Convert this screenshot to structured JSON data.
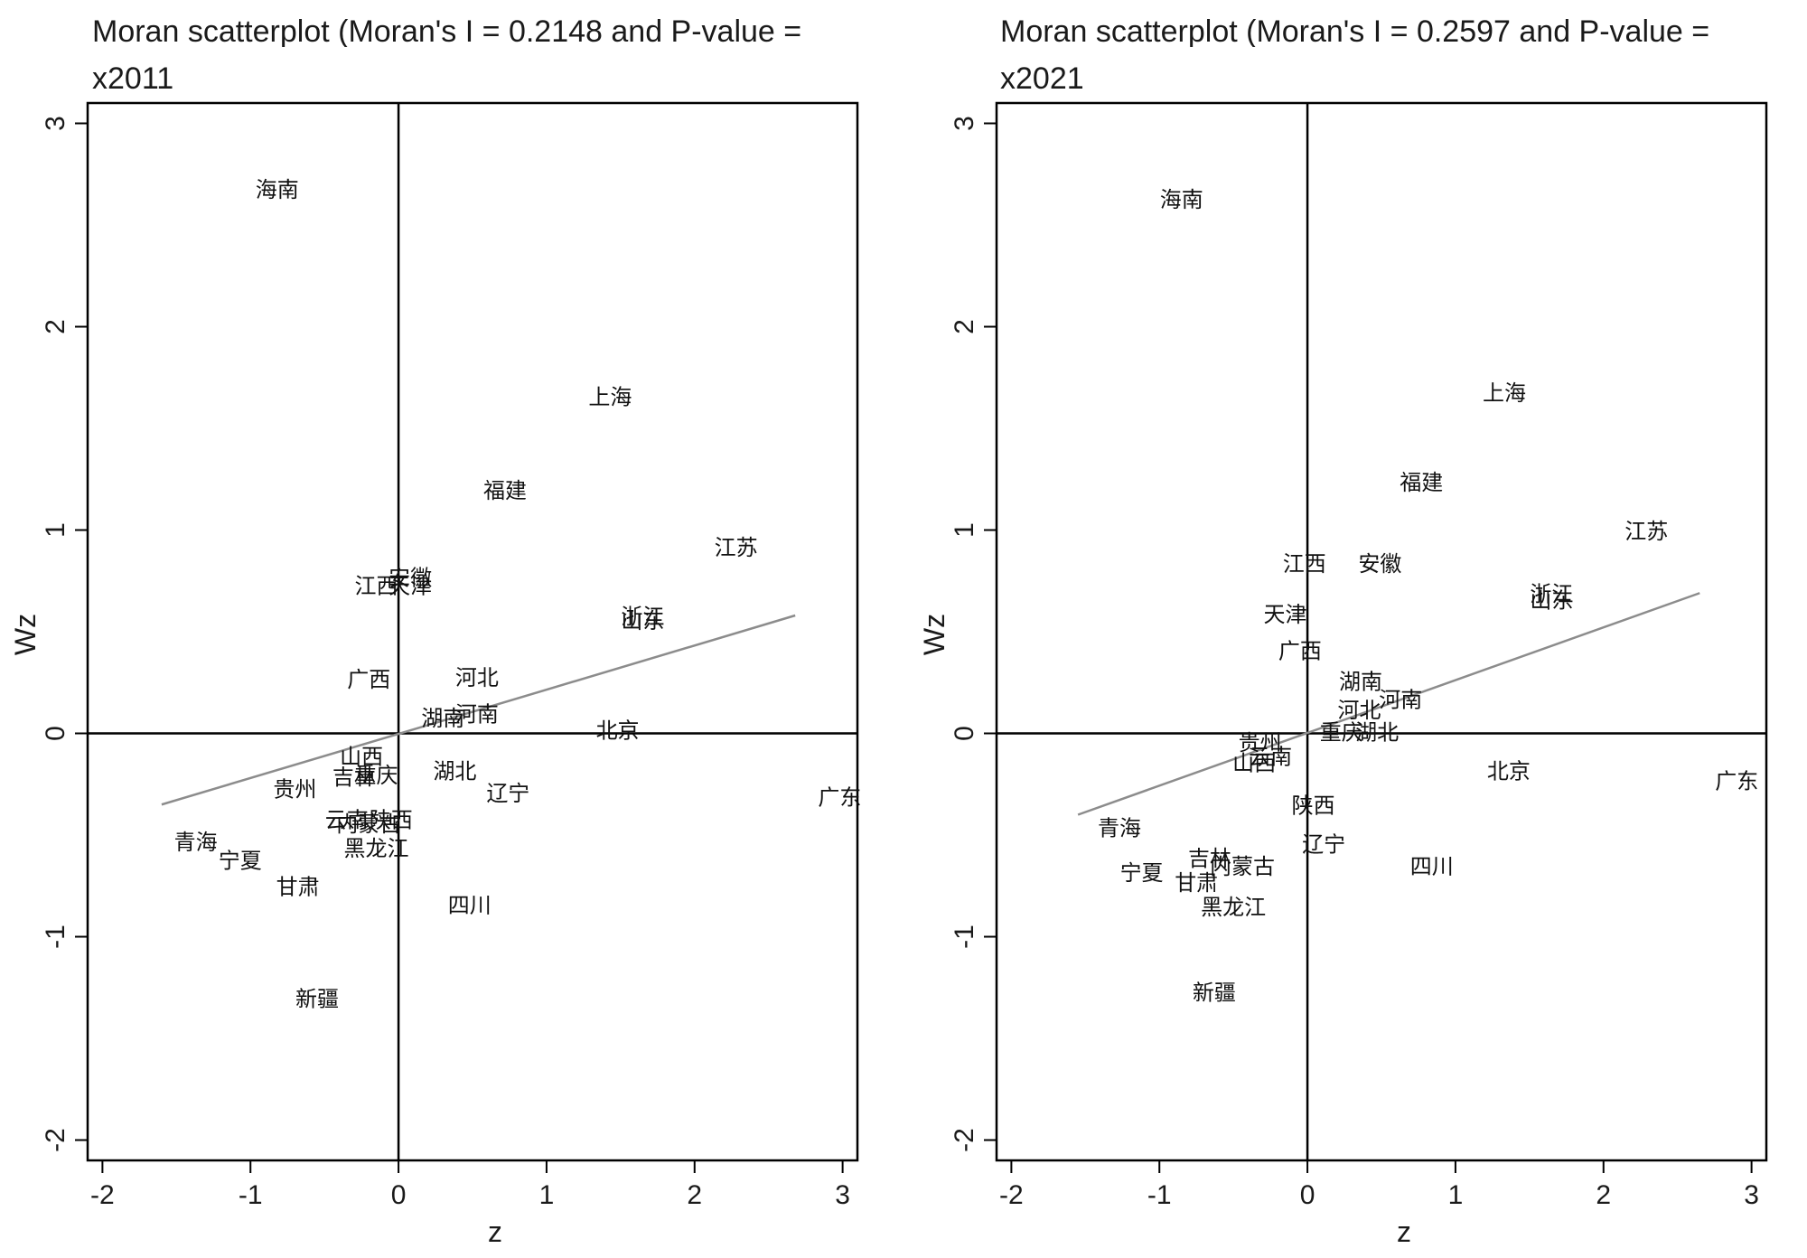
{
  "chart_data": [
    {
      "type": "scatter",
      "title": "Moran scatterplot (Moran's I = 0.2148 and P-value =",
      "subtitle": "x2011",
      "xlabel": "z",
      "ylabel": "Wz",
      "xlim": [
        -2.1,
        3.1
      ],
      "ylim": [
        -2.1,
        3.1
      ],
      "xticks": [
        -2,
        -1,
        0,
        1,
        2,
        3
      ],
      "yticks": [
        -2,
        -1,
        0,
        1,
        2,
        3
      ],
      "xtick_labels": [
        "-2",
        "-1",
        "0",
        "1",
        "2",
        "3"
      ],
      "ytick_labels": [
        "-2",
        "-1",
        "0",
        "1",
        "2",
        "3"
      ],
      "fit_line": {
        "x": [
          -1.6,
          2.68
        ],
        "y": [
          -0.35,
          0.58
        ]
      },
      "points": [
        {
          "label": "海南",
          "x": -0.82,
          "y": 2.67
        },
        {
          "label": "上海",
          "x": 1.43,
          "y": 1.65
        },
        {
          "label": "福建",
          "x": 0.72,
          "y": 1.19
        },
        {
          "label": "江苏",
          "x": 2.28,
          "y": 0.91
        },
        {
          "label": "安徽",
          "x": 0.08,
          "y": 0.76
        },
        {
          "label": "天津",
          "x": 0.08,
          "y": 0.72
        },
        {
          "label": "江西",
          "x": -0.15,
          "y": 0.72
        },
        {
          "label": "浙江",
          "x": 1.65,
          "y": 0.57
        },
        {
          "label": "山东",
          "x": 1.65,
          "y": 0.55
        },
        {
          "label": "广西",
          "x": -0.2,
          "y": 0.26
        },
        {
          "label": "河北",
          "x": 0.53,
          "y": 0.27
        },
        {
          "label": "河南",
          "x": 0.53,
          "y": 0.09
        },
        {
          "label": "湖南",
          "x": 0.3,
          "y": 0.07
        },
        {
          "label": "北京",
          "x": 1.48,
          "y": 0.01
        },
        {
          "label": "山西",
          "x": -0.25,
          "y": -0.12
        },
        {
          "label": "重庆",
          "x": -0.15,
          "y": -0.21
        },
        {
          "label": "吉林",
          "x": -0.3,
          "y": -0.22
        },
        {
          "label": "湖北",
          "x": 0.38,
          "y": -0.19
        },
        {
          "label": "辽宁",
          "x": 0.74,
          "y": -0.3
        },
        {
          "label": "广东",
          "x": 2.98,
          "y": -0.32
        },
        {
          "label": "贵州",
          "x": -0.7,
          "y": -0.28
        },
        {
          "label": "云南",
          "x": -0.35,
          "y": -0.43
        },
        {
          "label": "陕西",
          "x": -0.05,
          "y": -0.43
        },
        {
          "label": "内蒙古",
          "x": -0.2,
          "y": -0.45
        },
        {
          "label": "黑龙江",
          "x": -0.15,
          "y": -0.57
        },
        {
          "label": "青海",
          "x": -1.37,
          "y": -0.54
        },
        {
          "label": "宁夏",
          "x": -1.07,
          "y": -0.63
        },
        {
          "label": "甘肃",
          "x": -0.68,
          "y": -0.76
        },
        {
          "label": "四川",
          "x": 0.48,
          "y": -0.85
        },
        {
          "label": "新疆",
          "x": -0.55,
          "y": -1.31
        }
      ]
    },
    {
      "type": "scatter",
      "title": "Moran scatterplot (Moran's I = 0.2597 and P-value =",
      "subtitle": "x2021",
      "xlabel": "z",
      "ylabel": "Wz",
      "xlim": [
        -2.1,
        3.1
      ],
      "ylim": [
        -2.1,
        3.1
      ],
      "xticks": [
        -2,
        -1,
        0,
        1,
        2,
        3
      ],
      "yticks": [
        -2,
        -1,
        0,
        1,
        2,
        3
      ],
      "xtick_labels": [
        "-2",
        "-1",
        "0",
        "1",
        "2",
        "3"
      ],
      "ytick_labels": [
        "-2",
        "-1",
        "0",
        "1",
        "2",
        "3"
      ],
      "fit_line": {
        "x": [
          -1.55,
          2.65
        ],
        "y": [
          -0.4,
          0.69
        ]
      },
      "points": [
        {
          "label": "海南",
          "x": -0.85,
          "y": 2.62
        },
        {
          "label": "上海",
          "x": 1.33,
          "y": 1.67
        },
        {
          "label": "福建",
          "x": 0.77,
          "y": 1.23
        },
        {
          "label": "江苏",
          "x": 2.29,
          "y": 0.99
        },
        {
          "label": "江西",
          "x": -0.02,
          "y": 0.83
        },
        {
          "label": "安徽",
          "x": 0.49,
          "y": 0.83
        },
        {
          "label": "浙江",
          "x": 1.65,
          "y": 0.68
        },
        {
          "label": "山东",
          "x": 1.65,
          "y": 0.65
        },
        {
          "label": "天津",
          "x": -0.15,
          "y": 0.58
        },
        {
          "label": "广西",
          "x": -0.05,
          "y": 0.4
        },
        {
          "label": "湖南",
          "x": 0.36,
          "y": 0.25
        },
        {
          "label": "河南",
          "x": 0.63,
          "y": 0.16
        },
        {
          "label": "河北",
          "x": 0.35,
          "y": 0.11
        },
        {
          "label": "重庆",
          "x": 0.23,
          "y": 0.0
        },
        {
          "label": "湖北",
          "x": 0.47,
          "y": 0.0
        },
        {
          "label": "贵州",
          "x": -0.32,
          "y": -0.05
        },
        {
          "label": "云南",
          "x": -0.25,
          "y": -0.12
        },
        {
          "label": "山西",
          "x": -0.36,
          "y": -0.15
        },
        {
          "label": "北京",
          "x": 1.36,
          "y": -0.19
        },
        {
          "label": "广东",
          "x": 2.9,
          "y": -0.24
        },
        {
          "label": "陕西",
          "x": 0.04,
          "y": -0.36
        },
        {
          "label": "青海",
          "x": -1.27,
          "y": -0.47
        },
        {
          "label": "辽宁",
          "x": 0.11,
          "y": -0.55
        },
        {
          "label": "四川",
          "x": 0.84,
          "y": -0.66
        },
        {
          "label": "吉林",
          "x": -0.66,
          "y": -0.62
        },
        {
          "label": "内蒙古",
          "x": -0.44,
          "y": -0.66
        },
        {
          "label": "宁夏",
          "x": -1.12,
          "y": -0.69
        },
        {
          "label": "甘肃",
          "x": -0.75,
          "y": -0.74
        },
        {
          "label": "黑龙江",
          "x": -0.5,
          "y": -0.86
        },
        {
          "label": "新疆",
          "x": -0.63,
          "y": -1.28
        }
      ]
    }
  ]
}
